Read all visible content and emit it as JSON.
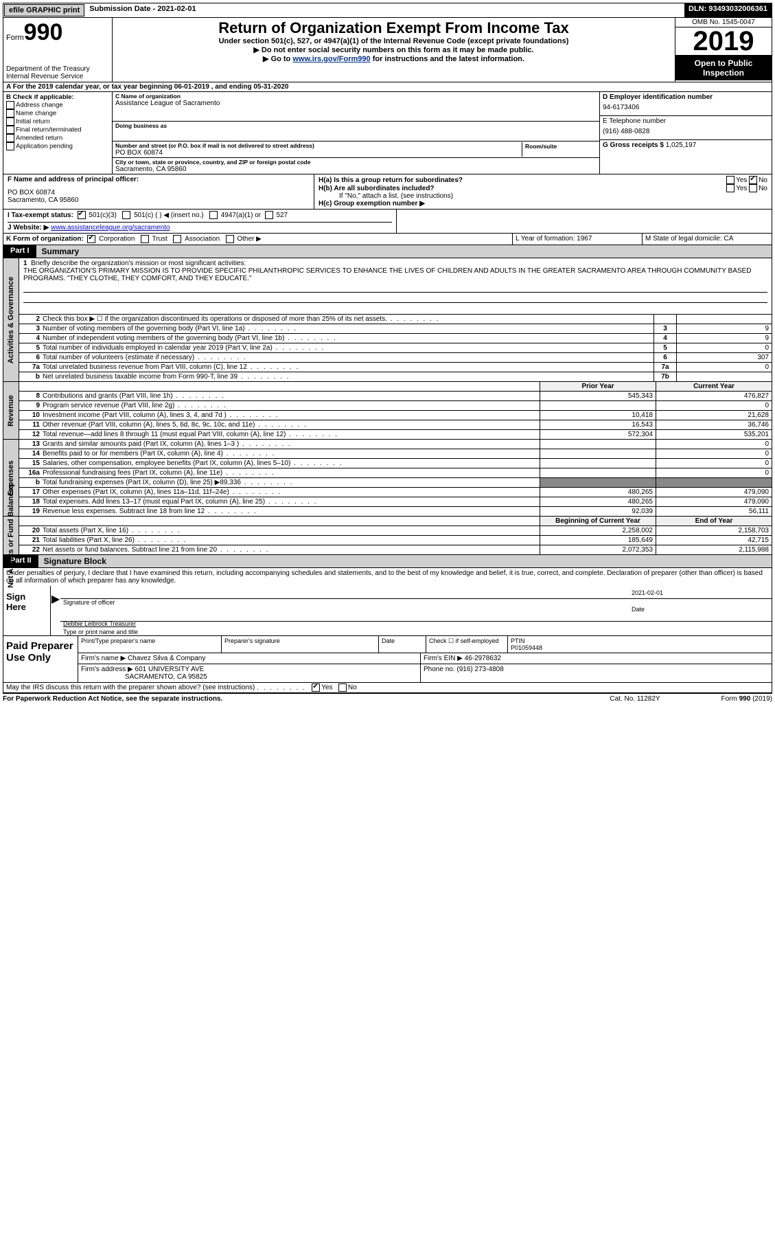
{
  "topbar": {
    "efile": "efile GRAPHIC print",
    "submission": "Submission Date - 2021-02-01",
    "dln": "DLN: 93493032006361"
  },
  "header": {
    "form_label": "Form",
    "form_num": "990",
    "dept": "Department of the Treasury\nInternal Revenue Service",
    "title": "Return of Organization Exempt From Income Tax",
    "sub1": "Under section 501(c), 527, or 4947(a)(1) of the Internal Revenue Code (except private foundations)",
    "sub2a": "▶ Do not enter social security numbers on this form as it may be made public.",
    "sub2b_pre": "▶ Go to ",
    "sub2b_link": "www.irs.gov/Form990",
    "sub2b_post": " for instructions and the latest information.",
    "omb": "OMB No. 1545-0047",
    "year": "2019",
    "otpi": "Open to Public Inspection"
  },
  "lineA": "For the 2019 calendar year, or tax year beginning 06-01-2019    , and ending 05-31-2020",
  "boxB": {
    "label": "B Check if applicable:",
    "items": [
      "Address change",
      "Name change",
      "Initial return",
      "Final return/terminated",
      "Amended return",
      "Application pending"
    ]
  },
  "boxC": {
    "name_lab": "C Name of organization",
    "name": "Assistance League of Sacramento",
    "dba_lab": "Doing business as",
    "addr_lab": "Number and street (or P.O. box if mail is not delivered to street address)",
    "addr": "PO BOX 60874",
    "room_lab": "Room/suite",
    "city_lab": "City or town, state or province, country, and ZIP or foreign postal code",
    "city": "Sacramento, CA  95860"
  },
  "boxD": {
    "lab": "D Employer identification number",
    "val": "94-6173406"
  },
  "boxE": {
    "lab": "E Telephone number",
    "val": "(916) 488-0828"
  },
  "boxG": {
    "lab": "G Gross receipts $",
    "val": "1,025,197"
  },
  "boxF": {
    "lab": "F  Name and address of principal officer:",
    "l1": "PO BOX 60874",
    "l2": "Sacramento, CA  95860"
  },
  "boxH": {
    "a": "H(a)  Is this a group return for subordinates?",
    "b": "H(b)  Are all subordinates included?",
    "note": "If \"No,\" attach a list. (see instructions)",
    "c": "H(c)  Group exemption number ▶"
  },
  "boxI": {
    "lab": "I    Tax-exempt status:",
    "o1": "501(c)(3)",
    "o2": "501(c) (   ) ◀ (insert no.)",
    "o3": "4947(a)(1) or",
    "o4": "527"
  },
  "boxJ": {
    "lab": "J    Website: ▶",
    "val": "www.assistanceleague.org/sacramento"
  },
  "boxK": "K Form of organization:",
  "boxK_opts": [
    "Corporation",
    "Trust",
    "Association",
    "Other ▶"
  ],
  "boxL": "L Year of formation: 1967",
  "boxM": "M State of legal domicile: CA",
  "part1": {
    "tab": "Part I",
    "title": "Summary"
  },
  "mission": {
    "num": "1",
    "lead": "Briefly describe the organization's mission or most significant activities:",
    "text": "THE ORGANIZATION'S PRIMARY MISSION IS TO PROVIDE SPECIFIC PHILANTHROPIC SERVICES TO ENHANCE THE LIVES OF CHILDREN AND ADULTS IN THE GREATER SACRAMENTO AREA THROUGH COMMUNITY BASED PROGRAMS. \"THEY CLOTHE, THEY COMFORT, AND THEY EDUCATE.\""
  },
  "gov_rows": [
    {
      "n": "2",
      "d": "Check this box ▶ ☐  if the organization discontinued its operations or disposed of more than 25% of its net assets.",
      "b": "",
      "v": ""
    },
    {
      "n": "3",
      "d": "Number of voting members of the governing body (Part VI, line 1a)",
      "b": "3",
      "v": "9"
    },
    {
      "n": "4",
      "d": "Number of independent voting members of the governing body (Part VI, line 1b)",
      "b": "4",
      "v": "9"
    },
    {
      "n": "5",
      "d": "Total number of individuals employed in calendar year 2019 (Part V, line 2a)",
      "b": "5",
      "v": "0"
    },
    {
      "n": "6",
      "d": "Total number of volunteers (estimate if necessary)",
      "b": "6",
      "v": "307"
    },
    {
      "n": "7a",
      "d": "Total unrelated business revenue from Part VIII, column (C), line 12",
      "b": "7a",
      "v": "0"
    },
    {
      "n": "b",
      "d": "Net unrelated business taxable income from Form 990-T, line 39",
      "b": "7b",
      "v": ""
    }
  ],
  "vhdr_gov": "Activities & Governance",
  "vhdr_rev": "Revenue",
  "vhdr_exp": "Expenses",
  "vhdr_net": "Net Assets or Fund Balances",
  "pc_hdr": {
    "p": "Prior Year",
    "c": "Current Year"
  },
  "rev_rows": [
    {
      "n": "8",
      "d": "Contributions and grants (Part VIII, line 1h)",
      "p": "545,343",
      "c": "476,827"
    },
    {
      "n": "9",
      "d": "Program service revenue (Part VIII, line 2g)",
      "p": "",
      "c": "0"
    },
    {
      "n": "10",
      "d": "Investment income (Part VIII, column (A), lines 3, 4, and 7d )",
      "p": "10,418",
      "c": "21,628"
    },
    {
      "n": "11",
      "d": "Other revenue (Part VIII, column (A), lines 5, 6d, 8c, 9c, 10c, and 11e)",
      "p": "16,543",
      "c": "36,746"
    },
    {
      "n": "12",
      "d": "Total revenue—add lines 8 through 11 (must equal Part VIII, column (A), line 12)",
      "p": "572,304",
      "c": "535,201"
    }
  ],
  "exp_rows": [
    {
      "n": "13",
      "d": "Grants and similar amounts paid (Part IX, column (A), lines 1–3 )",
      "p": "",
      "c": "0"
    },
    {
      "n": "14",
      "d": "Benefits paid to or for members (Part IX, column (A), line 4)",
      "p": "",
      "c": "0"
    },
    {
      "n": "15",
      "d": "Salaries, other compensation, employee benefits (Part IX, column (A), lines 5–10)",
      "p": "",
      "c": "0"
    },
    {
      "n": "16a",
      "d": "Professional fundraising fees (Part IX, column (A), line 11e)",
      "p": "",
      "c": "0"
    },
    {
      "n": "b",
      "d": "Total fundraising expenses (Part IX, column (D), line 25) ▶89,336",
      "p": "___",
      "c": "___"
    },
    {
      "n": "17",
      "d": "Other expenses (Part IX, column (A), lines 11a–11d, 11f–24e)",
      "p": "480,265",
      "c": "479,090"
    },
    {
      "n": "18",
      "d": "Total expenses. Add lines 13–17 (must equal Part IX, column (A), line 25)",
      "p": "480,265",
      "c": "479,090"
    },
    {
      "n": "19",
      "d": "Revenue less expenses. Subtract line 18 from line 12",
      "p": "92,039",
      "c": "56,111"
    }
  ],
  "net_hdr": {
    "p": "Beginning of Current Year",
    "c": "End of Year"
  },
  "net_rows": [
    {
      "n": "20",
      "d": "Total assets (Part X, line 16)",
      "p": "2,258,002",
      "c": "2,158,703"
    },
    {
      "n": "21",
      "d": "Total liabilities (Part X, line 26)",
      "p": "185,649",
      "c": "42,715"
    },
    {
      "n": "22",
      "d": "Net assets or fund balances. Subtract line 21 from line 20",
      "p": "2,072,353",
      "c": "2,115,988"
    }
  ],
  "part2": {
    "tab": "Part II",
    "title": "Signature Block"
  },
  "sig_text": "Under penalties of perjury, I declare that I have examined this return, including accompanying schedules and statements, and to the best of my knowledge and belief, it is true, correct, and complete. Declaration of preparer (other than officer) is based on all information of which preparer has any knowledge.",
  "sign_here": "Sign Here",
  "sig_officer_lab": "Signature of officer",
  "sig_date": "2021-02-01",
  "sig_date_lab": "Date",
  "sig_name": "Debbie Leibrock  Treasurer",
  "sig_name_lab": "Type or print name and title",
  "prep_lab": "Paid Preparer Use Only",
  "prep": {
    "c1": "Print/Type preparer's name",
    "c2": "Preparer's signature",
    "c3": "Date",
    "c4a": "Check ☐ if self-employed",
    "c5a": "PTIN",
    "c5b": "P01059448",
    "firm_lab": "Firm's name    ▶",
    "firm": "Chavez Silva & Company",
    "ein_lab": "Firm's EIN ▶",
    "ein": "46-2978632",
    "addr_lab": "Firm's address ▶",
    "addr1": "601 UNIVERSITY AVE",
    "addr2": "SACRAMENTO, CA  95825",
    "phone_lab": "Phone no.",
    "phone": "(916) 273-4808"
  },
  "discuss": "May the IRS discuss this return with the preparer shown above? (see instructions)",
  "foot": {
    "l": "For Paperwork Reduction Act Notice, see the separate instructions.",
    "c": "Cat. No. 11282Y",
    "r": "Form 990 (2019)"
  },
  "yes": "Yes",
  "no": "No"
}
